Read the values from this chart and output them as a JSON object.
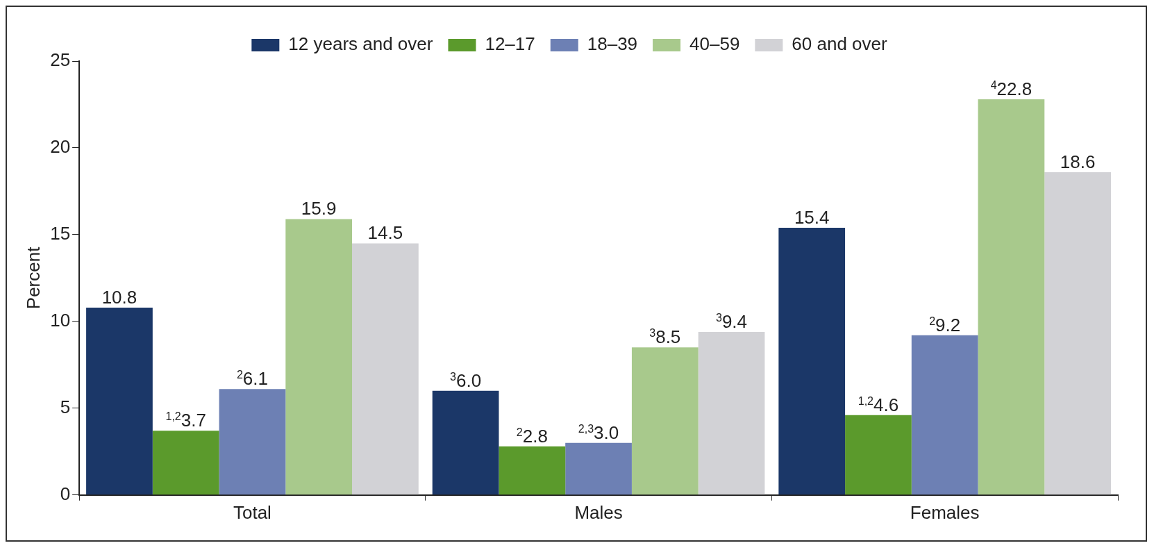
{
  "chart_data": {
    "type": "bar",
    "ylabel": "Percent",
    "categories": [
      "Total",
      "Males",
      "Females"
    ],
    "series": [
      {
        "name": "12 years and over",
        "color": "#1b3768",
        "values": [
          10.8,
          6.0,
          15.4
        ],
        "value_labels": [
          "10.8",
          "$^{3}$6.0",
          "15.4"
        ]
      },
      {
        "name": "12–17",
        "color": "#5b9a2c",
        "values": [
          3.7,
          2.8,
          4.6
        ],
        "value_labels": [
          "$^{1,2}$3.7",
          "$^{2}$2.8",
          "$^{1,2}$4.6"
        ]
      },
      {
        "name": "18–39",
        "color": "#6d80b4",
        "values": [
          6.1,
          3.0,
          9.2
        ],
        "value_labels": [
          "$^{2}$6.1",
          "$^{2,3}$3.0",
          "$^{2}$9.2"
        ]
      },
      {
        "name": "40–59",
        "color": "#a8c98c",
        "values": [
          15.9,
          8.5,
          22.8
        ],
        "value_labels": [
          "15.9",
          "$^{3}$8.5",
          "$^{4}$22.8"
        ]
      },
      {
        "name": "60 and over",
        "color": "#d2d2d6",
        "values": [
          14.5,
          9.4,
          18.6
        ],
        "value_labels": [
          "14.5",
          "$^{3}$9.4",
          "18.6"
        ]
      }
    ],
    "ylim": [
      0,
      25
    ],
    "yticks": [
      0,
      5,
      10,
      15,
      20,
      25
    ],
    "grid": false,
    "legend": "top"
  }
}
